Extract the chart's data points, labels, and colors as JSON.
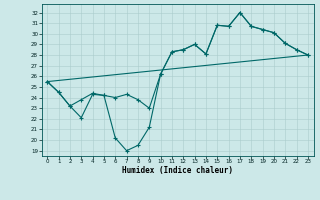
{
  "xlabel": "Humidex (Indice chaleur)",
  "xlim": [
    -0.5,
    23.5
  ],
  "ylim": [
    18.5,
    32.8
  ],
  "xticks": [
    0,
    1,
    2,
    3,
    4,
    5,
    6,
    7,
    8,
    9,
    10,
    11,
    12,
    13,
    14,
    15,
    16,
    17,
    18,
    19,
    20,
    21,
    22,
    23
  ],
  "yticks": [
    19,
    20,
    21,
    22,
    23,
    24,
    25,
    26,
    27,
    28,
    29,
    30,
    31,
    32
  ],
  "bg_color": "#cce8e8",
  "line_color": "#006868",
  "line1_x": [
    0,
    1,
    2,
    3,
    4,
    5,
    6,
    7,
    8,
    9,
    10,
    11,
    12,
    13,
    14,
    15,
    16,
    17,
    18,
    19,
    20,
    21,
    22,
    23
  ],
  "line1_y": [
    25.5,
    24.5,
    23.2,
    22.1,
    24.3,
    24.2,
    20.2,
    19.0,
    19.5,
    21.2,
    26.2,
    28.3,
    28.5,
    29.0,
    28.1,
    30.8,
    30.7,
    32.0,
    30.7,
    30.4,
    30.1,
    29.1,
    28.5,
    28.0
  ],
  "line2_x": [
    0,
    1,
    2,
    3,
    4,
    5,
    6,
    7,
    8,
    9,
    10,
    11,
    12,
    13,
    14,
    15,
    16,
    17,
    18,
    19,
    20,
    21,
    22,
    23
  ],
  "line2_y": [
    25.5,
    24.5,
    23.2,
    23.8,
    24.4,
    24.2,
    24.0,
    24.3,
    23.8,
    23.0,
    26.2,
    28.3,
    28.5,
    29.0,
    28.1,
    30.8,
    30.7,
    32.0,
    30.7,
    30.4,
    30.1,
    29.1,
    28.5,
    28.0
  ],
  "line3_x": [
    0,
    23
  ],
  "line3_y": [
    25.5,
    28.0
  ]
}
